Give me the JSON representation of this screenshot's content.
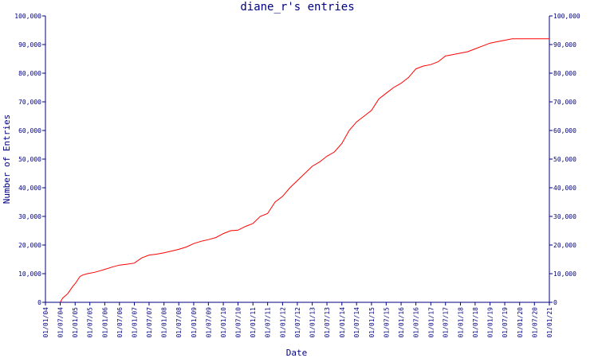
{
  "chart_data": {
    "type": "line",
    "title": "diane_r's entries",
    "xlabel": "Date",
    "ylabel": "Number of Entries",
    "x_ticks": [
      "01/01/04",
      "01/07/04",
      "01/01/05",
      "01/07/05",
      "01/01/06",
      "01/07/06",
      "01/01/07",
      "01/07/07",
      "01/01/08",
      "01/07/08",
      "01/01/09",
      "01/07/09",
      "01/01/10",
      "01/07/10",
      "01/01/11",
      "01/07/11",
      "01/01/12",
      "01/07/12",
      "01/01/13",
      "01/07/13",
      "01/01/14",
      "01/07/14",
      "01/01/15",
      "01/07/15",
      "01/01/16",
      "01/07/16",
      "01/01/17",
      "01/07/17",
      "01/01/18",
      "01/07/18",
      "01/01/19",
      "01/07/19",
      "01/01/20",
      "01/07/20",
      "01/01/21"
    ],
    "y_ticks": [
      "0",
      "10,000",
      "20,000",
      "30,000",
      "40,000",
      "50,000",
      "60,000",
      "70,000",
      "80,000",
      "90,000",
      "100,000"
    ],
    "ylim": [
      0,
      100000
    ],
    "grid": false,
    "legend": "none",
    "series_color": "#ff0000",
    "axis_color": "#000080",
    "series": [
      {
        "x": [
          "2004-07-01",
          "2004-08-01",
          "2004-10-01",
          "2004-12-01",
          "2005-01-01",
          "2005-03-01",
          "2005-04-01",
          "2005-06-01",
          "2005-09-01",
          "2006-01-01",
          "2006-04-01",
          "2006-07-01",
          "2006-10-01",
          "2007-01-01",
          "2007-04-01",
          "2007-07-01",
          "2007-10-01",
          "2008-01-01",
          "2008-04-01",
          "2008-07-01",
          "2008-10-01",
          "2009-01-01",
          "2009-04-01",
          "2009-07-01",
          "2009-10-01",
          "2010-01-01",
          "2010-04-01",
          "2010-07-01",
          "2010-10-01",
          "2011-01-01",
          "2011-04-01",
          "2011-07-01",
          "2011-10-01",
          "2012-01-01",
          "2012-04-01",
          "2012-07-01",
          "2012-10-01",
          "2013-01-01",
          "2013-04-01",
          "2013-07-01",
          "2013-10-01",
          "2014-01-01",
          "2014-04-01",
          "2014-07-01",
          "2014-10-01",
          "2015-01-01",
          "2015-04-01",
          "2015-07-01",
          "2015-10-01",
          "2016-01-01",
          "2016-04-01",
          "2016-07-01",
          "2016-10-01",
          "2017-01-01",
          "2017-04-01",
          "2017-07-01",
          "2017-10-01",
          "2018-01-01",
          "2018-04-01",
          "2018-07-01",
          "2018-10-01",
          "2019-01-01",
          "2019-04-01",
          "2019-07-01",
          "2019-10-01",
          "2020-01-01",
          "2020-07-01",
          "2021-01-01"
        ],
        "y": [
          0,
          1500,
          3000,
          5500,
          6500,
          9000,
          9500,
          10000,
          10500,
          11500,
          12300,
          13000,
          13300,
          13700,
          15500,
          16500,
          16800,
          17300,
          17900,
          18500,
          19300,
          20500,
          21300,
          21900,
          22600,
          24000,
          25000,
          25200,
          26500,
          27500,
          30000,
          31000,
          35000,
          37000,
          40000,
          42500,
          45000,
          47500,
          49000,
          51000,
          52500,
          55500,
          60000,
          63000,
          65000,
          67000,
          71000,
          73000,
          75000,
          76500,
          78500,
          81500,
          82500,
          83000,
          84000,
          86000,
          86500,
          87000,
          87500,
          88500,
          89500,
          90500,
          91000,
          91500,
          92000,
          92000,
          92000,
          92000
        ]
      }
    ]
  }
}
